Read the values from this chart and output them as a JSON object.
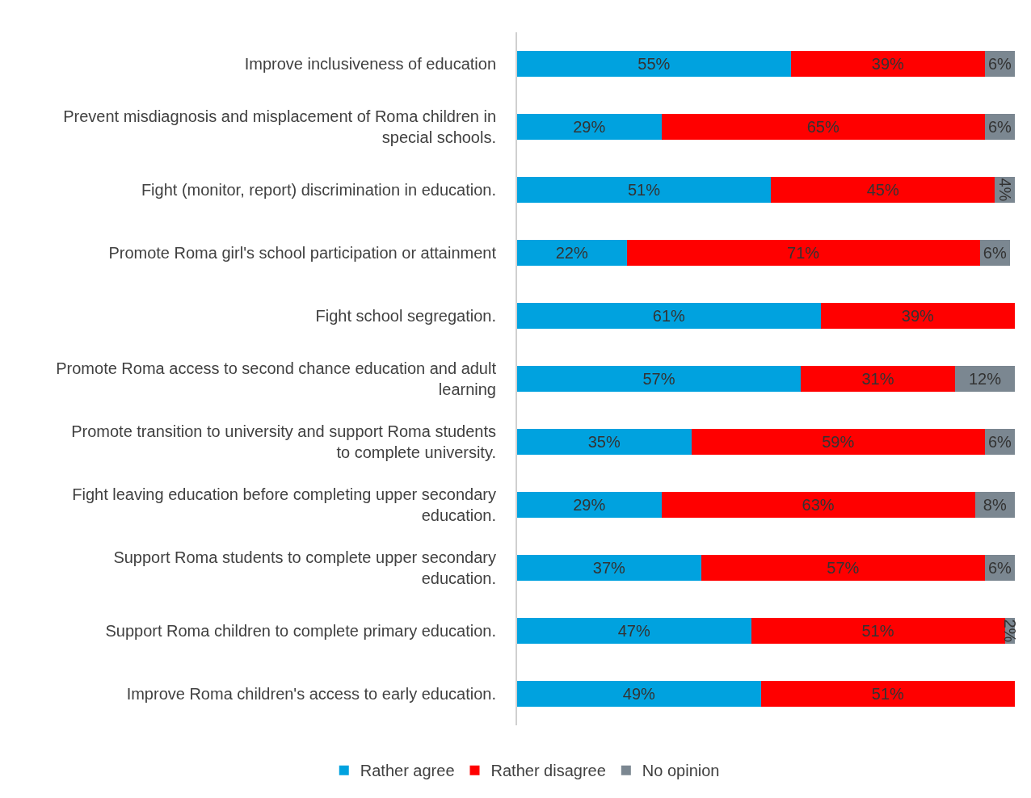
{
  "chart_data": {
    "type": "bar",
    "orientation": "horizontal",
    "stacked": true,
    "legend": "bottom",
    "grid": false,
    "xlim": [
      0,
      100
    ],
    "categories": [
      "Improve inclusiveness of education",
      "Prevent misdiagnosis and misplacement of Roma children in special schools.",
      "Fight (monitor, report) discrimination in education.",
      "Promote Roma girl's school participation or attainment",
      "Fight school segregation.",
      "Promote Roma access to second chance education and adult learning",
      "Promote transition to university and support Roma students to complete university.",
      "Fight leaving education before completing upper secondary education.",
      "Support Roma students to complete upper secondary education.",
      "Support Roma children to complete primary education.",
      "Improve Roma children's access to early education."
    ],
    "series": [
      {
        "name": "Rather agree",
        "color": "#00a2df",
        "values": [
          55,
          29,
          51,
          22,
          61,
          57,
          35,
          29,
          37,
          47,
          49
        ],
        "value_labels": [
          "55%",
          "29%",
          "51%",
          "22%",
          "61%",
          "57%",
          "35%",
          "29%",
          "37%",
          "47%",
          "49%"
        ]
      },
      {
        "name": "Rather disagree",
        "color": "#ff0000",
        "values": [
          39,
          65,
          45,
          71,
          39,
          31,
          59,
          63,
          57,
          51,
          51
        ],
        "value_labels": [
          "39%",
          "65%",
          "45%",
          "71%",
          "39%",
          "31%",
          "59%",
          "63%",
          "57%",
          "51%",
          "51%"
        ]
      },
      {
        "name": "No opinion",
        "color": "#7b8791",
        "values": [
          6,
          6,
          4,
          6,
          null,
          12,
          6,
          8,
          6,
          2,
          null
        ],
        "value_labels": [
          "6%",
          "6%",
          "4%",
          "6%",
          null,
          "12%",
          "6%",
          "8%",
          "6%",
          "2%",
          null
        ]
      }
    ]
  }
}
